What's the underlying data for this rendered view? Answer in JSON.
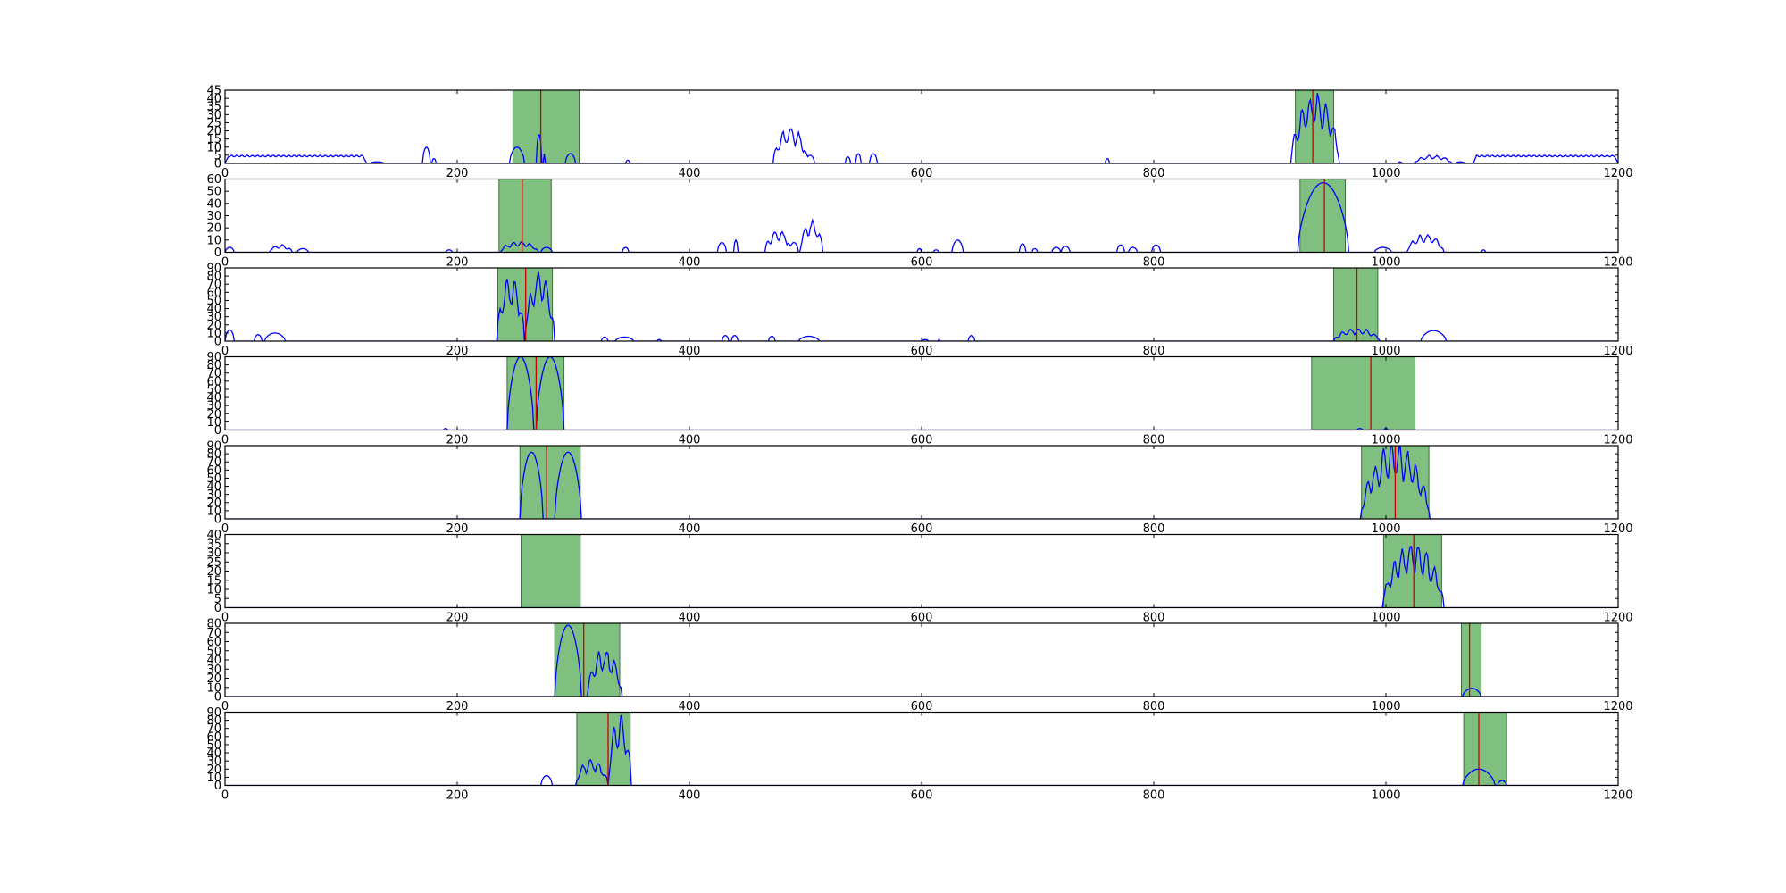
{
  "colors": {
    "signal": "#0000ff",
    "marker": "#cc0000",
    "window_fill": "#7fbf7f",
    "window_edge": "#3f6f3f",
    "axes": "#000000"
  },
  "chart_data": [
    {
      "type": "line",
      "xlim": [
        0,
        1200
      ],
      "ylim": [
        0,
        45
      ],
      "xticks": [
        0,
        200,
        400,
        600,
        800,
        1000,
        1200
      ],
      "yticks": [
        0,
        5,
        10,
        15,
        20,
        25,
        30,
        35,
        40,
        45
      ],
      "windows": [
        [
          248,
          305
        ],
        [
          922,
          955
        ]
      ],
      "markers": [
        272,
        937
      ],
      "bumps": [
        [
          0,
          122,
          5,
          0
        ],
        [
          125,
          137,
          1,
          0
        ],
        [
          170,
          177,
          10,
          0
        ],
        [
          178,
          182,
          3,
          0
        ],
        [
          245,
          258,
          10,
          0
        ],
        [
          268,
          273,
          18,
          0
        ],
        [
          274,
          276,
          6,
          0
        ],
        [
          293,
          302,
          6,
          0
        ],
        [
          345,
          349,
          2,
          0
        ],
        [
          472,
          502,
          22,
          1
        ],
        [
          500,
          508,
          5,
          0
        ],
        [
          534,
          539,
          4,
          0
        ],
        [
          543,
          548,
          6,
          0
        ],
        [
          555,
          562,
          6,
          0
        ],
        [
          758,
          762,
          3,
          0
        ],
        [
          918,
          960,
          42,
          1
        ],
        [
          1010,
          1014,
          1,
          0
        ],
        [
          1024,
          1057,
          5,
          1
        ],
        [
          1060,
          1068,
          1,
          0
        ],
        [
          1075,
          1200,
          5,
          0
        ]
      ]
    },
    {
      "type": "line",
      "xlim": [
        0,
        1200
      ],
      "ylim": [
        0,
        60
      ],
      "xticks": [
        0,
        200,
        400,
        600,
        800,
        1000,
        1200
      ],
      "yticks": [
        0,
        10,
        20,
        30,
        40,
        50,
        60
      ],
      "windows": [
        [
          236,
          281
        ],
        [
          926,
          965
        ]
      ],
      "markers": [
        256,
        947
      ],
      "bumps": [
        [
          0,
          8,
          4,
          0
        ],
        [
          38,
          58,
          6,
          1
        ],
        [
          62,
          72,
          3,
          0
        ],
        [
          190,
          196,
          2,
          0
        ],
        [
          237,
          270,
          9,
          1
        ],
        [
          272,
          282,
          4,
          0
        ],
        [
          342,
          348,
          4,
          0
        ],
        [
          424,
          432,
          8,
          0
        ],
        [
          438,
          442,
          10,
          0
        ],
        [
          465,
          488,
          18,
          1
        ],
        [
          486,
          494,
          8,
          0
        ],
        [
          495,
          515,
          26,
          1
        ],
        [
          596,
          600,
          3,
          0
        ],
        [
          610,
          615,
          2,
          0
        ],
        [
          626,
          636,
          10,
          0
        ],
        [
          684,
          690,
          7,
          0
        ],
        [
          695,
          700,
          3,
          0
        ],
        [
          712,
          720,
          4,
          0
        ],
        [
          720,
          728,
          5,
          0
        ],
        [
          768,
          775,
          6,
          0
        ],
        [
          778,
          786,
          4,
          0
        ],
        [
          798,
          806,
          6,
          0
        ],
        [
          924,
          968,
          57,
          0
        ],
        [
          990,
          1005,
          4,
          0
        ],
        [
          1018,
          1050,
          15,
          1
        ],
        [
          1082,
          1086,
          2,
          0
        ]
      ]
    },
    {
      "type": "line",
      "xlim": [
        0,
        1200
      ],
      "ylim": [
        0,
        90
      ],
      "xticks": [
        0,
        200,
        400,
        600,
        800,
        1000,
        1200
      ],
      "yticks": [
        0,
        10,
        20,
        30,
        40,
        50,
        60,
        70,
        80,
        90
      ],
      "windows": [
        [
          235,
          282
        ],
        [
          955,
          993
        ]
      ],
      "markers": [
        259,
        975
      ],
      "bumps": [
        [
          0,
          8,
          14,
          0
        ],
        [
          25,
          32,
          8,
          0
        ],
        [
          34,
          52,
          10,
          0
        ],
        [
          234,
          258,
          80,
          1
        ],
        [
          258,
          284,
          85,
          1
        ],
        [
          324,
          330,
          5,
          0
        ],
        [
          336,
          352,
          5,
          0
        ],
        [
          372,
          376,
          2,
          0
        ],
        [
          428,
          434,
          7,
          0
        ],
        [
          436,
          442,
          7,
          0
        ],
        [
          468,
          474,
          6,
          0
        ],
        [
          494,
          512,
          6,
          0
        ],
        [
          600,
          606,
          2,
          0
        ],
        [
          614,
          616,
          2,
          0
        ],
        [
          640,
          646,
          7,
          0
        ],
        [
          955,
          995,
          16,
          1
        ],
        [
          1030,
          1052,
          13,
          0
        ]
      ]
    },
    {
      "type": "line",
      "xlim": [
        0,
        1200
      ],
      "ylim": [
        0,
        90
      ],
      "xticks": [
        0,
        200,
        400,
        600,
        800,
        1000,
        1200
      ],
      "yticks": [
        0,
        10,
        20,
        30,
        40,
        50,
        60,
        70,
        80,
        90
      ],
      "windows": [
        [
          243,
          292
        ],
        [
          936,
          1025
        ]
      ],
      "markers": [
        268,
        987
      ],
      "bumps": [
        [
          188,
          192,
          2,
          0
        ],
        [
          243,
          266,
          90,
          0
        ],
        [
          268,
          292,
          90,
          0
        ],
        [
          975,
          980,
          2,
          0
        ],
        [
          998,
          1002,
          2,
          0
        ]
      ]
    },
    {
      "type": "line",
      "xlim": [
        0,
        1200
      ],
      "ylim": [
        0,
        90
      ],
      "xticks": [
        0,
        200,
        400,
        600,
        800,
        1000,
        1200
      ],
      "yticks": [
        0,
        10,
        20,
        30,
        40,
        50,
        60,
        70,
        80,
        90
      ],
      "windows": [
        [
          254,
          306
        ],
        [
          979,
          1037
        ]
      ],
      "markers": [
        277,
        1008
      ],
      "bumps": [
        [
          254,
          274,
          82,
          0
        ],
        [
          284,
          307,
          82,
          0
        ],
        [
          978,
          1038,
          90,
          1
        ]
      ]
    },
    {
      "type": "line",
      "xlim": [
        0,
        1200
      ],
      "ylim": [
        0,
        40
      ],
      "xticks": [
        0,
        200,
        400,
        600,
        800,
        1000,
        1200
      ],
      "yticks": [
        0,
        5,
        10,
        15,
        20,
        25,
        30,
        35,
        40
      ],
      "windows": [
        [
          255,
          306
        ],
        [
          998,
          1048
        ]
      ],
      "markers": [
        1024
      ],
      "bumps": [
        [
          997,
          1050,
          35,
          1
        ]
      ]
    },
    {
      "type": "line",
      "xlim": [
        0,
        1200
      ],
      "ylim": [
        0,
        80
      ],
      "xticks": [
        0,
        200,
        400,
        600,
        800,
        1000,
        1200
      ],
      "yticks": [
        0,
        10,
        20,
        30,
        40,
        50,
        60,
        70,
        80
      ],
      "windows": [
        [
          284,
          340
        ],
        [
          1065,
          1082
        ]
      ],
      "markers": [
        309,
        1072
      ],
      "bumps": [
        [
          284,
          307,
          78,
          0
        ],
        [
          312,
          342,
          52,
          1
        ],
        [
          1066,
          1082,
          9,
          0
        ]
      ]
    },
    {
      "type": "line",
      "xlim": [
        0,
        1200
      ],
      "ylim": [
        0,
        90
      ],
      "xticks": [
        0,
        200,
        400,
        600,
        800,
        1000,
        1200
      ],
      "yticks": [
        0,
        10,
        20,
        30,
        40,
        50,
        60,
        70,
        80,
        90
      ],
      "windows": [
        [
          303,
          349
        ],
        [
          1067,
          1104
        ]
      ],
      "markers": [
        330,
        1080
      ],
      "bumps": [
        [
          272,
          282,
          12,
          0
        ],
        [
          302,
          330,
          32,
          1
        ],
        [
          330,
          350,
          85,
          1
        ],
        [
          1066,
          1094,
          20,
          0
        ],
        [
          1096,
          1104,
          6,
          0
        ]
      ]
    }
  ]
}
